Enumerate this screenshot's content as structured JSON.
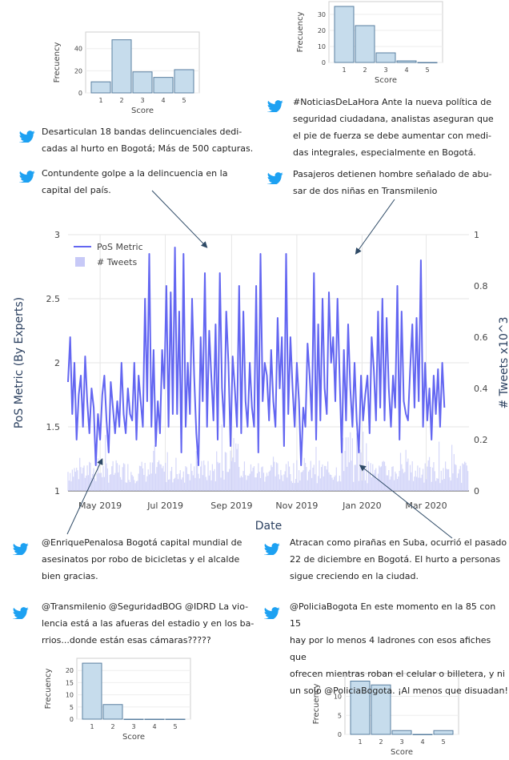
{
  "colors": {
    "line": "#6366f1",
    "bars": "#c7c9f7",
    "hist_fill": "#c6dcec",
    "hist_stroke": "#5a7fa0",
    "twitter": "#1da1f2",
    "arrow": "#2e4a66"
  },
  "chart_data": [
    {
      "id": "main",
      "type": "line",
      "xlabel": "Date",
      "ylabel": "PoS Metric (By Experts)",
      "y2label": "# Tweets x10^3",
      "ylim": [
        1,
        3
      ],
      "y2lim": [
        0,
        1
      ],
      "yticks": [
        "1",
        "1.5",
        "2",
        "2.5",
        "3"
      ],
      "y2ticks": [
        "0",
        "0.2",
        "0.4",
        "0.6",
        "0.8",
        "1"
      ],
      "xticks": [
        "May 2019",
        "Jul 2019",
        "Sep 2019",
        "Nov 2019",
        "Jan 2020",
        "Mar 2020"
      ],
      "xrange": [
        "2019-04-01",
        "2020-04-10"
      ],
      "legend": [
        {
          "name": "PoS Metric",
          "style": "line"
        },
        {
          "name": "# Tweets",
          "style": "bar"
        }
      ],
      "series": [
        {
          "name": "PoS Metric",
          "start": "2019-04-01",
          "step_days": 2,
          "values": [
            1.85,
            2.2,
            1.6,
            2.0,
            1.4,
            1.75,
            1.9,
            1.5,
            2.05,
            1.7,
            1.45,
            1.8,
            1.65,
            1.2,
            1.6,
            1.4,
            1.75,
            1.9,
            1.55,
            1.3,
            1.85,
            1.65,
            1.45,
            1.7,
            1.5,
            2.0,
            1.6,
            1.45,
            1.8,
            1.6,
            1.55,
            2.0,
            1.4,
            1.9,
            1.7,
            1.5,
            2.5,
            1.7,
            2.85,
            1.5,
            2.1,
            1.35,
            1.7,
            1.45,
            2.1,
            1.8,
            2.6,
            1.5,
            2.55,
            1.6,
            2.9,
            1.6,
            2.4,
            1.3,
            2.85,
            1.5,
            2.0,
            1.6,
            2.5,
            1.9,
            1.45,
            1.2,
            2.2,
            1.7,
            2.7,
            1.5,
            2.25,
            1.9,
            1.55,
            2.3,
            1.4,
            2.7,
            1.8,
            1.5,
            2.4,
            2.0,
            1.35,
            2.05,
            1.8,
            1.5,
            2.6,
            1.45,
            2.4,
            1.7,
            1.5,
            2.0,
            1.65,
            1.5,
            2.6,
            1.3,
            2.85,
            1.7,
            2.0,
            1.9,
            1.55,
            2.1,
            1.7,
            1.5,
            2.35,
            1.8,
            2.2,
            1.35,
            2.85,
            1.6,
            2.2,
            1.8,
            1.5,
            2.0,
            1.7,
            1.2,
            1.65,
            1.5,
            2.15,
            1.9,
            1.55,
            2.7,
            1.4,
            2.3,
            1.55,
            2.5,
            1.8,
            1.6,
            2.55,
            2.0,
            2.2,
            1.7,
            2.5,
            1.9,
            1.3,
            2.1,
            1.55,
            2.3,
            1.8,
            1.5,
            2.0,
            1.55,
            1.3,
            1.9,
            1.55,
            1.75,
            1.9,
            1.45,
            2.2,
            1.95,
            1.55,
            2.4,
            1.65,
            2.5,
            1.55,
            2.35,
            1.8,
            1.5,
            1.9,
            1.65,
            2.6,
            1.4,
            2.4,
            1.7,
            1.6,
            1.55,
            1.95,
            2.3,
            1.65,
            2.35,
            1.7,
            2.8,
            1.5,
            2.0,
            1.55,
            1.8,
            1.4,
            1.9,
            1.6,
            1.95,
            1.5,
            2.0,
            1.65,
            null,
            1.55
          ],
          "gaps": [
            [
              191,
              193
            ]
          ]
        },
        {
          "name": "# Tweets",
          "start": "2019-04-01",
          "step_days": 1,
          "unit": "x10^3",
          "generated_pattern": true
        }
      ],
      "annotations": [
        {
          "text": "Desarticulan 18 bandas delincuenciales dedicadas al hurto en Bogotá; Más de 500 capturas."
        },
        {
          "text": "Contundente golpe a la delincuencia en la capital del país.",
          "x": "2019-08-09",
          "y": 2.9
        },
        {
          "text": "#NoticiasDeLaHora Ante la nueva política de seguridad ciudadana, analistas aseguran que el pie de fuerza se debe aumentar con medidas integrales, especialmente en Bogotá."
        },
        {
          "text": "Pasajeros detienen hombre señalado de abusar de dos niñas en Transmilenio",
          "x": "2019-12-26",
          "y": 2.85
        },
        {
          "text": "@EnriquePenalosa Bogotá capital mundial de asesinatos por robo de bicicletas y el alcalde bien gracias.",
          "x": "2019-05-03",
          "y": 1.25
        },
        {
          "text": "@Transmilenio @SeguridadBOG @IDRD La violencia está a las afueras del estadio y en los barrios...donde están esas cámaras?????"
        },
        {
          "text": "Atracan como pirañas en Suba, ocurrió el pasado 22 de diciembre en Bogotá. El hurto a personas sigue creciendo en la ciudad.",
          "x": "2019-12-30",
          "y": 1.2
        },
        {
          "text": "@PoliciaBogota En este momento en la 85 con 15 hay por lo menos 4 ladrones con esos afiches que ofrecen mientras roban el celular o billetera, y ni un solo @PoliciaBogota. ¡Al menos que disuadan!"
        }
      ]
    },
    {
      "id": "hist-top-left",
      "type": "bar",
      "xlabel": "Score",
      "ylabel": "Frecuency",
      "categories": [
        "1",
        "2",
        "3",
        "4",
        "5"
      ],
      "values": [
        10,
        48,
        19,
        14,
        21
      ],
      "ylim": [
        0,
        55
      ],
      "yticks": [
        0,
        20,
        40
      ]
    },
    {
      "id": "hist-top-right",
      "type": "bar",
      "xlabel": "Score",
      "ylabel": "Frecuency",
      "categories": [
        "1",
        "2",
        "3",
        "4",
        "5"
      ],
      "values": [
        35,
        23,
        6,
        1,
        0
      ],
      "ylim": [
        0,
        38
      ],
      "yticks": [
        0,
        10,
        20,
        30
      ]
    },
    {
      "id": "hist-bottom-left",
      "type": "bar",
      "xlabel": "Score",
      "ylabel": "Frecuency",
      "categories": [
        "1",
        "2",
        "3",
        "4",
        "5"
      ],
      "values": [
        23,
        6,
        0,
        0,
        0
      ],
      "ylim": [
        0,
        25
      ],
      "yticks": [
        0,
        5,
        10,
        15,
        20
      ]
    },
    {
      "id": "hist-bottom-right",
      "type": "bar",
      "xlabel": "Score",
      "ylabel": "Frecuency",
      "categories": [
        "1",
        "2",
        "3",
        "4",
        "5"
      ],
      "values": [
        14,
        13,
        1,
        0,
        1
      ],
      "ylim": [
        0,
        16
      ],
      "yticks": [
        0,
        5,
        10
      ]
    }
  ],
  "tweets": [
    {
      "lines": [
        "Desarticulan 18 bandas delincuenciales dedi-",
        "cadas al hurto en Bogotá; Más de 500 capturas."
      ]
    },
    {
      "lines": [
        "Contundente golpe a la delincuencia en la",
        "capital del país."
      ]
    },
    {
      "lines": [
        "#NoticiasDeLaHora Ante la nueva política de",
        "seguridad ciudadana, analistas aseguran que",
        "el pie de fuerza se debe aumentar con medi-",
        "das integrales, especialmente en Bogotá."
      ]
    },
    {
      "lines": [
        "Pasajeros detienen hombre señalado de abu-",
        "sar de dos niñas en Transmilenio"
      ]
    },
    {
      "lines": [
        "@EnriquePenalosa Bogotá capital mundial de",
        "asesinatos por robo de bicicletas y el alcalde",
        "bien gracias."
      ]
    },
    {
      "lines": [
        "@Transmilenio @SeguridadBOG @IDRD La vio-",
        "lencia está a las afueras del estadio y en los ba-",
        "rrios...donde están esas cámaras?????"
      ]
    },
    {
      "lines": [
        "Atracan como pirañas en Suba, ocurrió el pasado",
        "22 de diciembre en Bogotá. El hurto a personas",
        "sigue creciendo en la ciudad."
      ]
    },
    {
      "lines": [
        "@PoliciaBogota En este momento en la 85 con 15",
        "hay por lo menos 4 ladrones con esos afiches que",
        "ofrecen mientras roban el celular o billetera, y ni",
        "un solo @PoliciaBogota. ¡Al menos que disuadan!"
      ]
    }
  ]
}
